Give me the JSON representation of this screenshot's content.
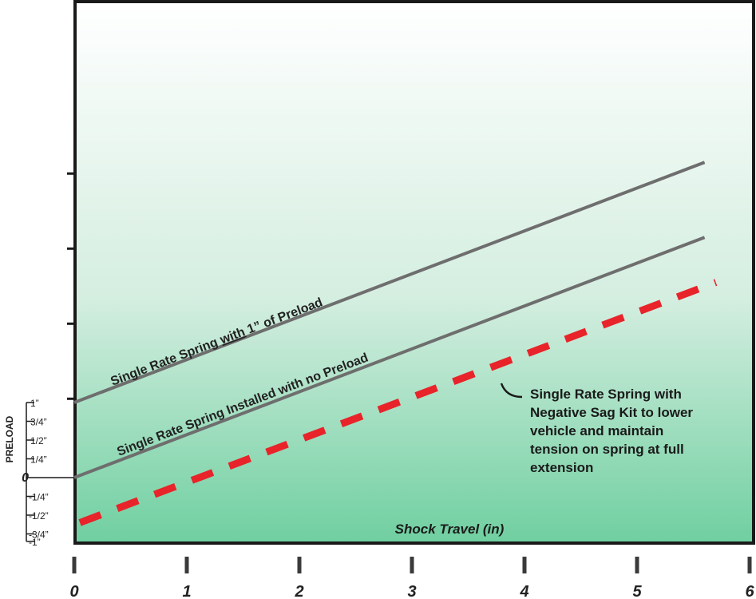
{
  "chart_data": {
    "type": "line",
    "xlabel": "Shock Travel (in)",
    "ylabel": "PRELOAD",
    "x_ticks": [
      "0",
      "1",
      "2",
      "3",
      "4",
      "5",
      "6"
    ],
    "xlim": [
      0,
      6
    ],
    "preload_ticks": [
      "1”",
      "3/4”",
      "1/2”",
      "1/4”",
      "0",
      "-1/4”",
      "-1/2”",
      "-3/4”",
      "-1”"
    ],
    "preload_values": [
      1,
      0.75,
      0.5,
      0.25,
      0,
      -0.25,
      -0.5,
      -0.75,
      -1
    ],
    "grid": false,
    "series": [
      {
        "label_parts": [
          "Single Rate Spring ",
          "with",
          " 1” of Preload"
        ],
        "x": [
          0,
          5.6
        ],
        "y": [
          1,
          4.2
        ],
        "color": "#6e6e6e",
        "style": "solid"
      },
      {
        "label": "Single Rate Spring Installed with no Preload",
        "x": [
          0,
          5.6
        ],
        "y": [
          0,
          3.2
        ],
        "color": "#6e6e6e",
        "style": "solid"
      },
      {
        "x": [
          0.05,
          5.7
        ],
        "y": [
          -0.6,
          2.6
        ],
        "color": "#e8232a",
        "style": "dashed"
      }
    ],
    "annotation_lines": [
      "Single Rate Spring with",
      "Negative Sag Kit to lower",
      "vehicle and maintain",
      "tension on spring at full",
      "extension"
    ],
    "colors": {
      "background_top": "#ffffff",
      "background_bottom": "#6fcfa0",
      "frame": "#1a1a1a"
    }
  }
}
